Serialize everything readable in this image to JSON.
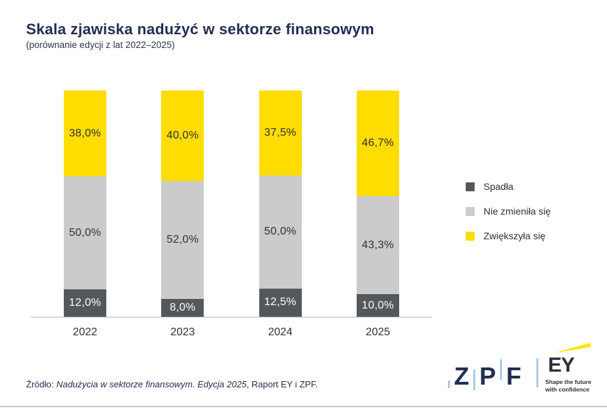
{
  "header": {
    "title": "Skala zjawiska nadużyć w sektorze finansowym",
    "subtitle": "(porównanie edycji z lat 2022–2025)"
  },
  "chart_data": {
    "type": "bar",
    "stacked": true,
    "unit": "%",
    "ylim": [
      0,
      100
    ],
    "grid": false,
    "legend_position": "right",
    "categories": [
      "2022",
      "2023",
      "2024",
      "2025"
    ],
    "series": [
      {
        "key": "spadla",
        "name": "Spadła",
        "color": "#55585b",
        "label_color": "#ffffff",
        "values": [
          12.0,
          8.0,
          12.5,
          10.0
        ],
        "labels": [
          "12,0%",
          "8,0%",
          "12,5%",
          "10,0%"
        ]
      },
      {
        "key": "nie-zmienila-sie",
        "name": "Nie zmieniła się",
        "color": "#cbcbcc",
        "label_color": "#2e2e38",
        "values": [
          50.0,
          52.0,
          50.0,
          43.3
        ],
        "labels": [
          "50,0%",
          "52,0%",
          "50,0%",
          "43,3%"
        ]
      },
      {
        "key": "zwiekszyla-sie",
        "name": "Zwiększyła się",
        "color": "#ffdd00",
        "label_color": "#2e2e38",
        "values": [
          38.0,
          40.0,
          37.5,
          46.7
        ],
        "labels": [
          "38,0%",
          "40,0%",
          "37,5%",
          "46,7%"
        ]
      }
    ]
  },
  "footer": {
    "source_prefix": "Źródło: ",
    "source_italic": "Nadużycia w sektorze finansowym. Edycja 2025",
    "source_suffix": ", Raport EY i ZPF."
  },
  "logos": {
    "zpf": {
      "letters": [
        "Z",
        "P",
        "F"
      ],
      "navy": "#232d52",
      "light_blue": "#aacbea"
    },
    "ey": {
      "name": "EY",
      "tagline_line1": "Shape the future",
      "tagline_line2": "with confidence",
      "dark": "#2e2e38",
      "yellow": "#ffe600"
    }
  }
}
